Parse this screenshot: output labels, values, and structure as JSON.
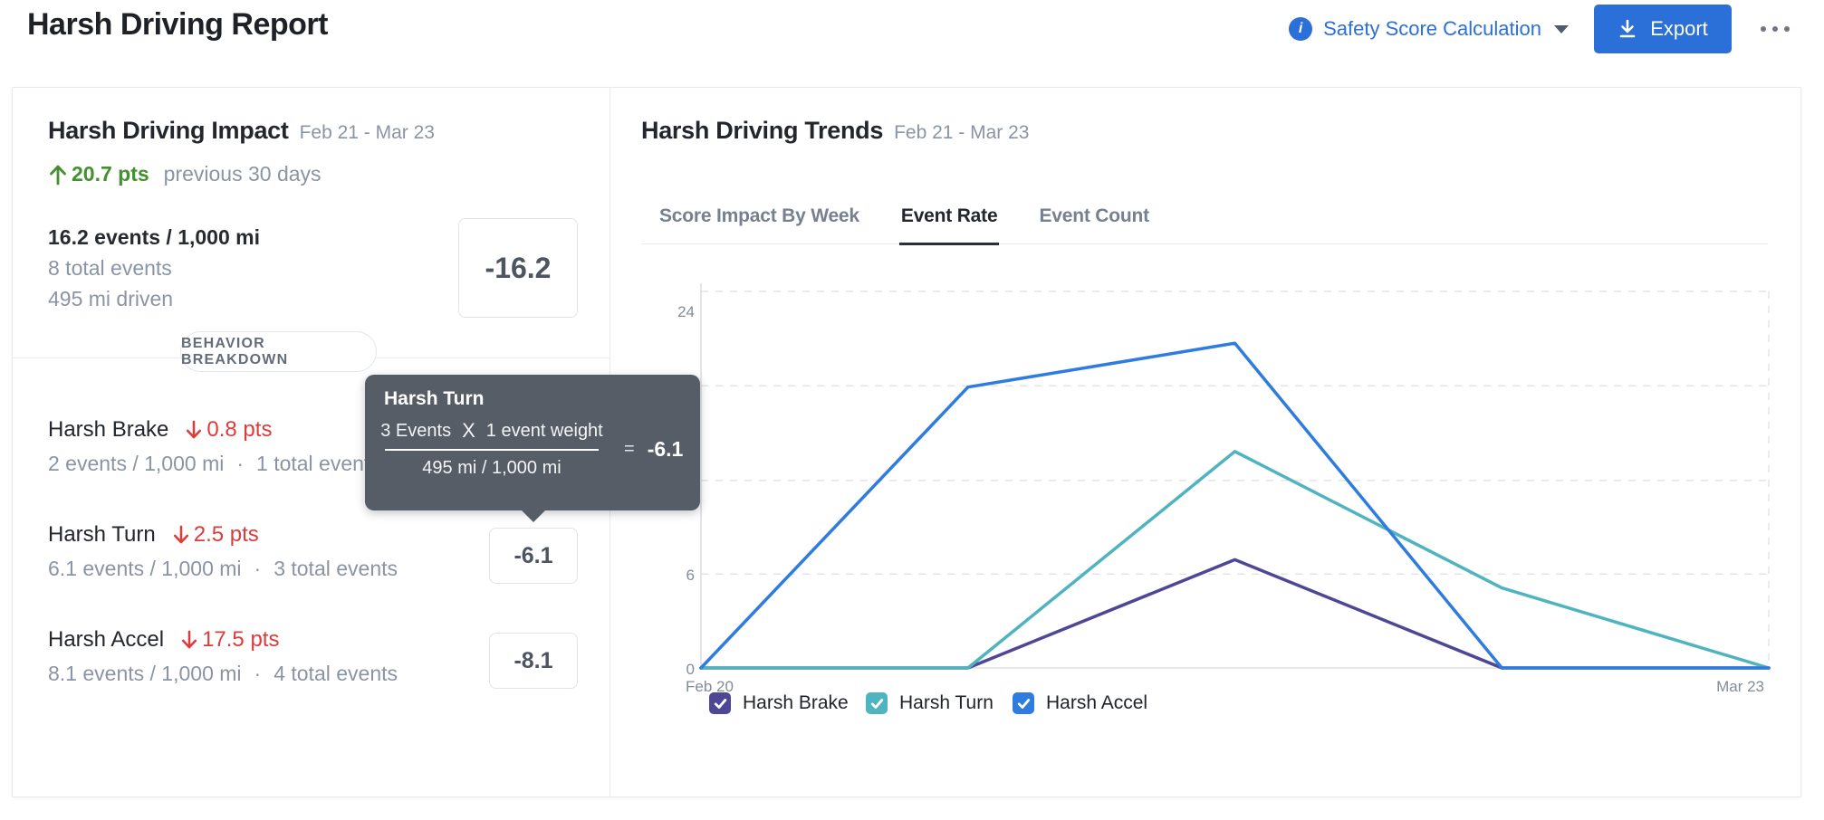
{
  "header": {
    "title": "Harsh Driving Report",
    "safety_score_link": "Safety Score Calculation",
    "export_label": "Export"
  },
  "impact": {
    "title": "Harsh Driving Impact",
    "date_range": "Feb 21 - Mar 23",
    "change_value": "20.7 pts",
    "change_period": "previous 30 days",
    "event_rate": "16.2 events / 1,000 mi",
    "total_events": "8 total events",
    "miles_driven": "495  mi driven",
    "impact_score": "-16.2",
    "section_label": "BEHAVIOR BREAKDOWN",
    "separator": "·",
    "behaviors": [
      {
        "name": "Harsh Brake",
        "pts_drop": "0.8 pts",
        "rate": "2 events / 1,000 mi",
        "total": "1 total event"
      },
      {
        "name": "Harsh Turn",
        "pts_drop": "2.5 pts",
        "rate": "6.1 events / 1,000 mi",
        "total": "3 total events",
        "score": "-6.1"
      },
      {
        "name": "Harsh Accel",
        "pts_drop": "17.5 pts",
        "rate": "8.1 events / 1,000 mi",
        "total": "4 total events",
        "score": "-8.1"
      }
    ]
  },
  "tooltip": {
    "title": "Harsh Turn",
    "events": "3 Events",
    "times": "X",
    "weight": "1 event weight",
    "denominator": "495 mi / 1,000 mi",
    "equals": "=",
    "result": "-6.1"
  },
  "trends": {
    "title": "Harsh Driving Trends",
    "date_range": "Feb 21 - Mar 23",
    "tabs": [
      "Score Impact By Week",
      "Event Rate",
      "Event Count"
    ],
    "active_tab": "Event Rate"
  },
  "chart_data": {
    "type": "line",
    "title": "Harsh Driving Trends - Event Rate",
    "x_axis": {
      "points": 5,
      "start_label": "Feb 20",
      "end_label": "Mar 23"
    },
    "y_axis": {
      "min": 0,
      "max": 24,
      "gridlines": [
        0,
        6,
        12,
        18,
        24
      ],
      "visible_tick_labels": [
        "24",
        "6",
        "0"
      ]
    },
    "grid": "horizontal dashed",
    "legend_position": "bottom",
    "series": [
      {
        "name": "Harsh Brake",
        "color": "#4e4796",
        "values": [
          0,
          0,
          6.9,
          0,
          0
        ]
      },
      {
        "name": "Harsh Turn",
        "color": "#4fb3c0",
        "values": [
          0,
          0,
          13.8,
          5.1,
          0
        ]
      },
      {
        "name": "Harsh Accel",
        "color": "#2e7ce0",
        "values": [
          0,
          17.9,
          20.7,
          0,
          0
        ]
      }
    ],
    "legend": [
      "Harsh Brake",
      "Harsh Turn",
      "Harsh Accel"
    ]
  },
  "colors": {
    "accent_blue": "#2b6fd8",
    "positive_green": "#41912c",
    "negative_red": "#de3b3b",
    "tooltip_bg": "#575d66",
    "muted_text": "#8b94a4",
    "dark_text": "#23262c"
  }
}
